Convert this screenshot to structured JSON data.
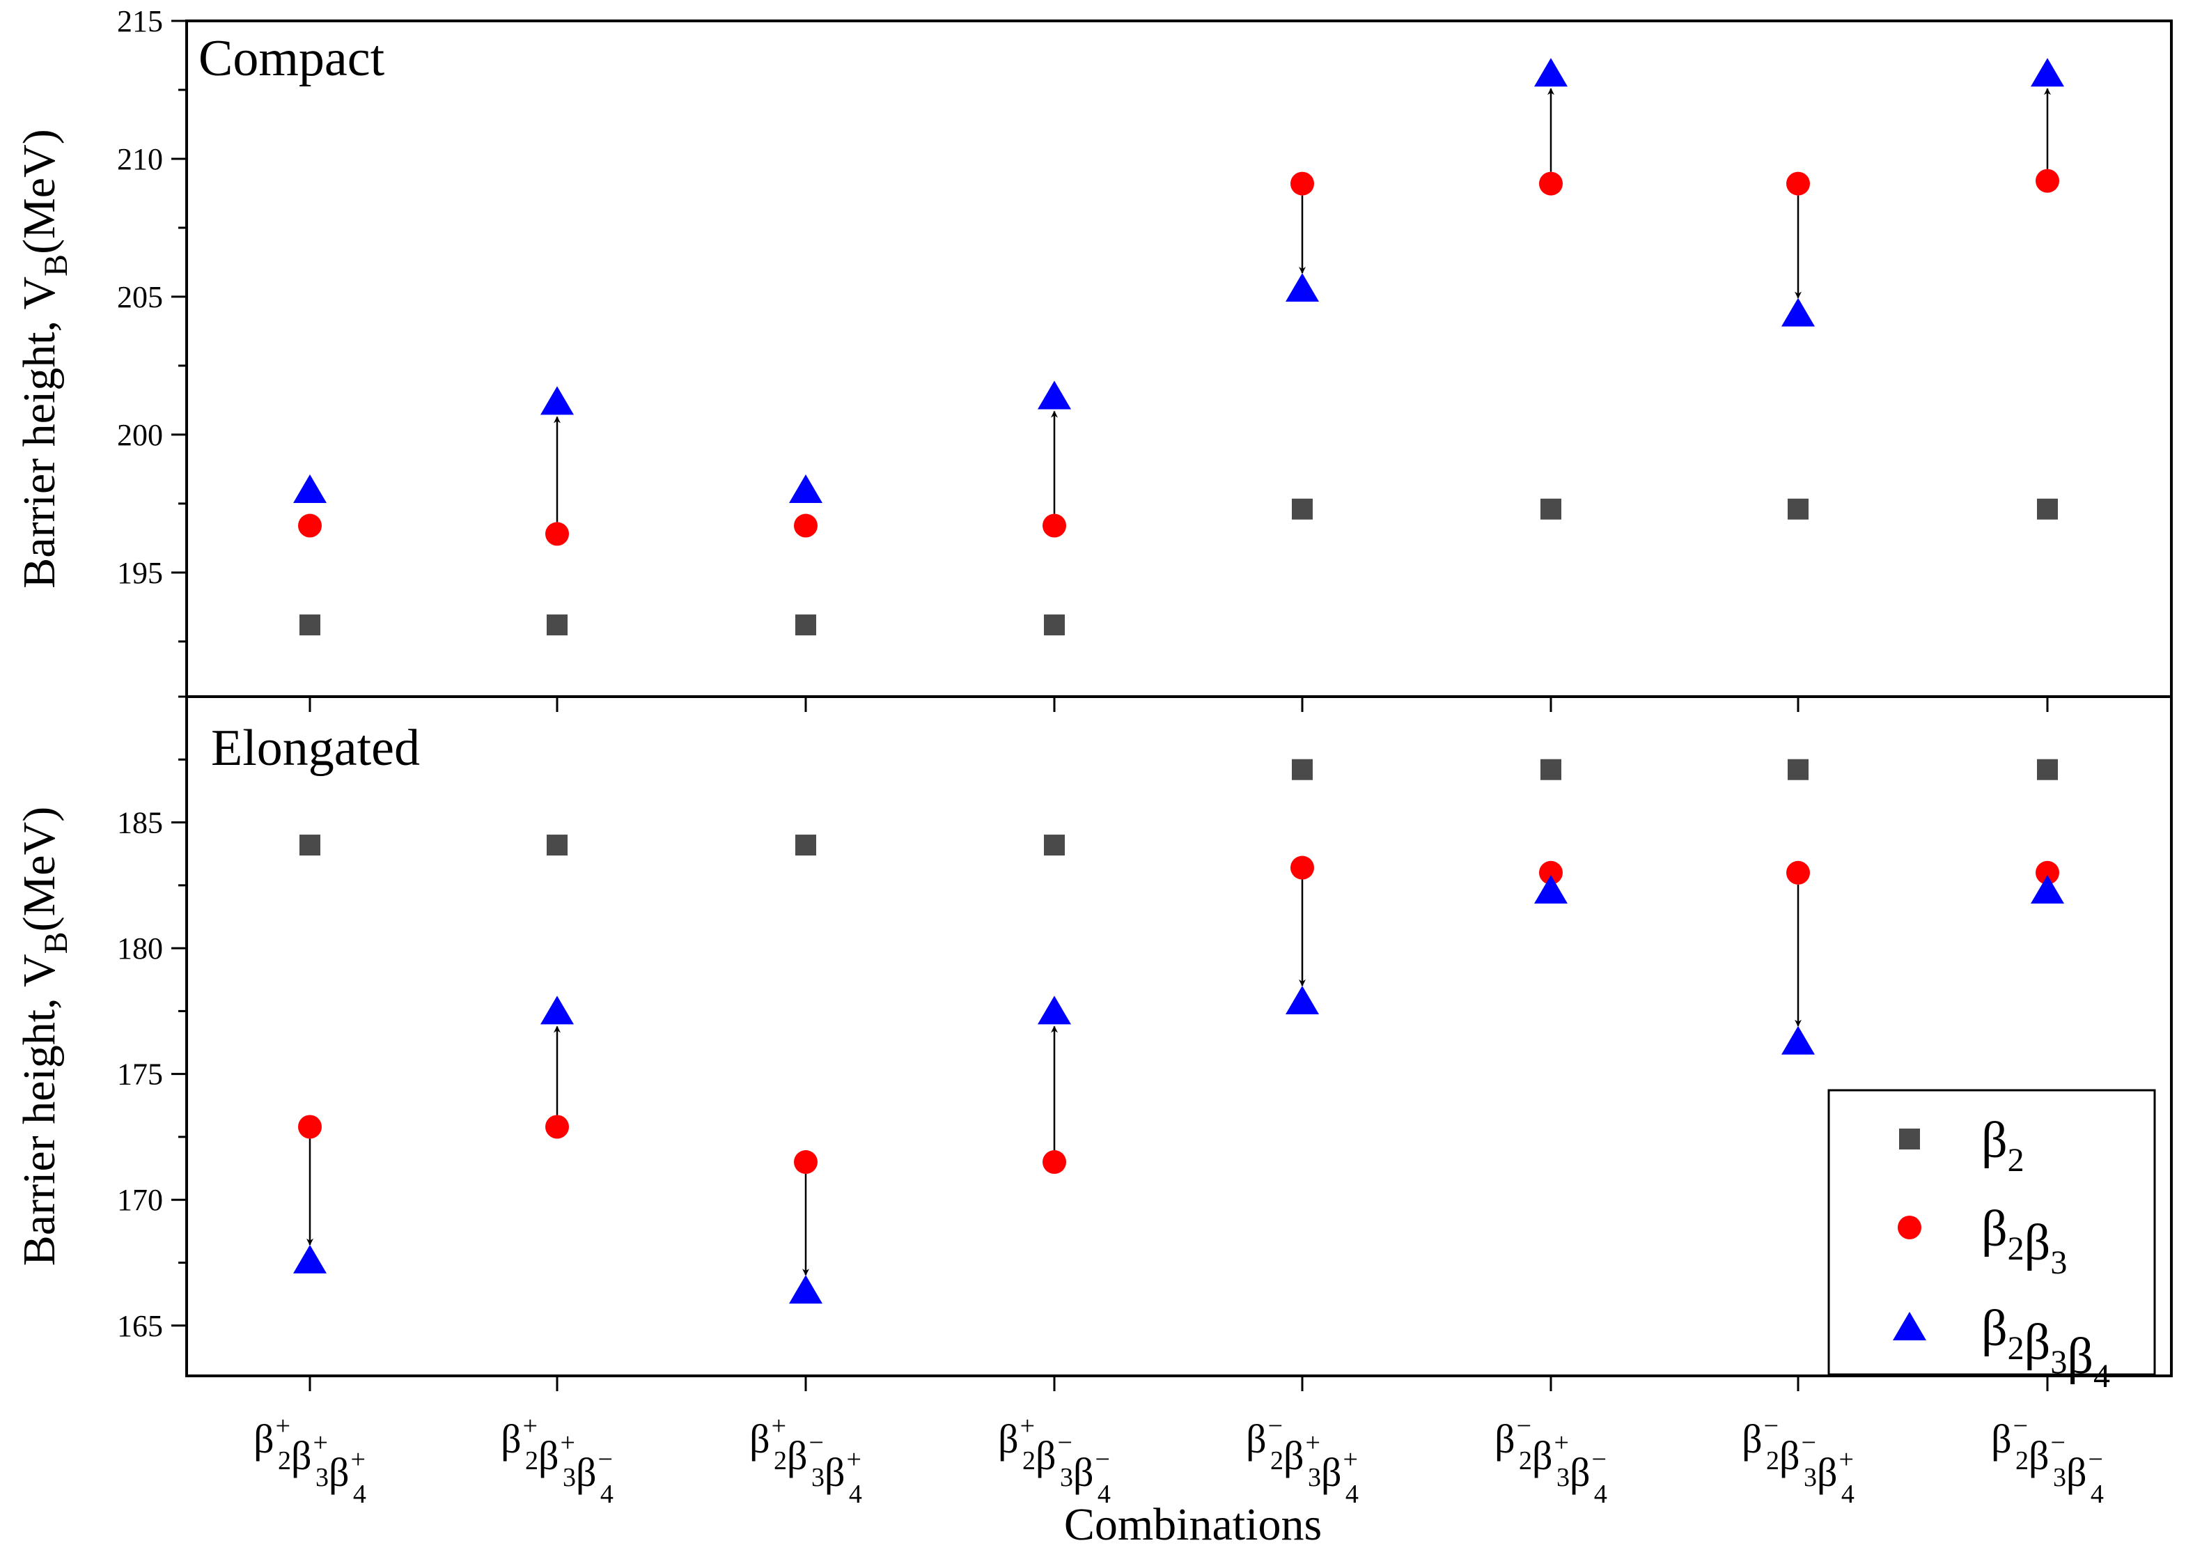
{
  "chart_data": [
    {
      "type": "scatter",
      "title": "Compact",
      "ylabel_main": "Barrier height,  V",
      "ylabel_sub": "B",
      "ylabel_unit": "(MeV)",
      "ylim": [
        190.5,
        215
      ],
      "yticks": [
        195,
        200,
        205,
        210,
        215
      ],
      "series": [
        {
          "name": "β2",
          "marker": "square",
          "color": "#4a4a4a",
          "values": [
            193.1,
            193.1,
            193.1,
            193.1,
            197.3,
            197.3,
            197.3,
            197.3
          ]
        },
        {
          "name": "β2β3",
          "marker": "circle",
          "color": "#ff0000",
          "values": [
            196.7,
            196.4,
            196.7,
            196.7,
            209.1,
            209.1,
            209.1,
            209.2
          ]
        },
        {
          "name": "β2β3β4",
          "marker": "triangle",
          "color": "#0000ff",
          "values": [
            198.0,
            201.2,
            198.0,
            201.4,
            205.3,
            213.1,
            204.4,
            213.1
          ]
        }
      ],
      "arrows": [
        1,
        3,
        4,
        5,
        6,
        7
      ]
    },
    {
      "type": "scatter",
      "title": "Elongated",
      "ylabel_main": "Barrier height,  V",
      "ylabel_sub": "B",
      "ylabel_unit": "(MeV)",
      "ylim": [
        163,
        190
      ],
      "yticks": [
        165,
        170,
        175,
        180,
        185
      ],
      "xlabel": "Combinations",
      "categories": [
        {
          "b2": "+",
          "b3": "+",
          "b4": "+"
        },
        {
          "b2": "+",
          "b3": "+",
          "b4": "−"
        },
        {
          "b2": "+",
          "b3": "−",
          "b4": "+"
        },
        {
          "b2": "+",
          "b3": "−",
          "b4": "−"
        },
        {
          "b2": "−",
          "b3": "+",
          "b4": "+"
        },
        {
          "b2": "−",
          "b3": "+",
          "b4": "−"
        },
        {
          "b2": "−",
          "b3": "−",
          "b4": "+"
        },
        {
          "b2": "−",
          "b3": "−",
          "b4": "−"
        }
      ],
      "series": [
        {
          "name": "β2",
          "marker": "square",
          "color": "#4a4a4a",
          "values": [
            184.1,
            184.1,
            184.1,
            184.1,
            187.1,
            187.1,
            187.1,
            187.1
          ]
        },
        {
          "name": "β2β3",
          "marker": "circle",
          "color": "#ff0000",
          "values": [
            172.9,
            172.9,
            171.5,
            171.5,
            183.2,
            183.0,
            183.0,
            183.0
          ]
        },
        {
          "name": "β2β3β4",
          "marker": "triangle",
          "color": "#0000ff",
          "values": [
            167.6,
            177.5,
            166.4,
            177.5,
            177.9,
            182.3,
            176.3,
            182.3
          ]
        }
      ],
      "arrows": [
        0,
        1,
        2,
        3,
        4,
        6
      ],
      "legend_position": "bottom-right"
    }
  ]
}
